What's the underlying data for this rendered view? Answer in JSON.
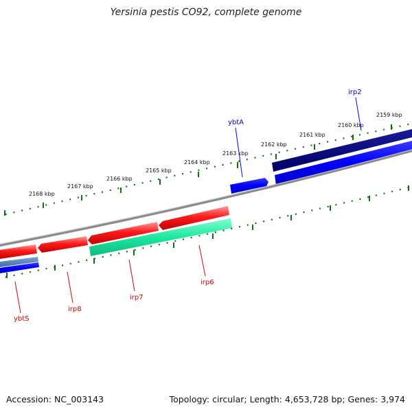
{
  "title": "Yersinia pestis CO92, complete genome",
  "footer": {
    "accession": "Accession: NC_003143",
    "summary": "Topology: circular; Length: 4,653,728 bp; Genes: 3,974"
  },
  "ticks": [
    {
      "label": "2168 kbp"
    },
    {
      "label": "2167 kbp"
    },
    {
      "label": "2166 kbp"
    },
    {
      "label": "2165 kbp"
    },
    {
      "label": "2164 kbp"
    },
    {
      "label": "2163 kbp"
    },
    {
      "label": "2162 kbp"
    },
    {
      "label": "2161 kbp"
    },
    {
      "label": "2160 kbp"
    },
    {
      "label": "2159 kbp"
    }
  ],
  "genes": [
    {
      "label": "irp2",
      "color": "#0000cc"
    },
    {
      "label": "ybtA",
      "color": "#0000cc"
    },
    {
      "label": "irp6",
      "color": "#cc0000"
    },
    {
      "label": "irp7",
      "color": "#cc0000"
    },
    {
      "label": "irp8",
      "color": "#cc0000"
    },
    {
      "label": "ybtS",
      "color": "#cc0000"
    }
  ],
  "colors": {
    "backbone": "#808080",
    "tick": "#107010",
    "forward_gene": "#0000ff",
    "forward_gene_dark": "#000080",
    "reverse_gene": "#ff0000",
    "reverse_other": "#00e88a",
    "steel": "#4a7ab8"
  }
}
